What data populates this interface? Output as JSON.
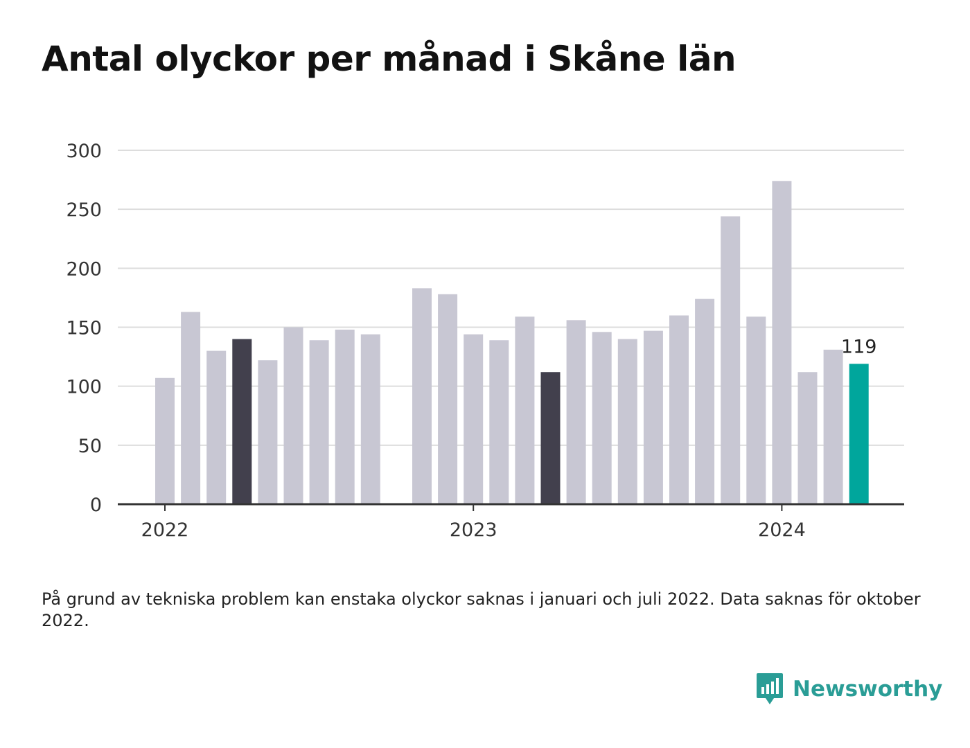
{
  "title": "Antal olyckor per månad i Skåne län",
  "note": "På grund av tekniska problem kan enstaka olyckor saknas i januari och juli 2022. Data saknas för oktober 2022.",
  "brand": {
    "name": "Newsworthy",
    "color": "#2a9d96"
  },
  "colors": {
    "default_bar": "#c8c7d3",
    "highlight_bar": "#42404d",
    "current_bar": "#00a69c",
    "grid": "#dddddd",
    "axis": "#333333"
  },
  "chart_data": {
    "type": "bar",
    "ylim": [
      0,
      300
    ],
    "yticks": [
      0,
      50,
      100,
      150,
      200,
      250,
      300
    ],
    "xtick_labels": [
      {
        "label": "2022",
        "month": "2022-01"
      },
      {
        "label": "2023",
        "month": "2023-01"
      },
      {
        "label": "2024",
        "month": "2024-01"
      }
    ],
    "grid": true,
    "data_labels": [
      {
        "month": "2024-04",
        "text": "119"
      }
    ],
    "categories": [
      "2022-01",
      "2022-02",
      "2022-03",
      "2022-04",
      "2022-05",
      "2022-06",
      "2022-07",
      "2022-08",
      "2022-09",
      "2022-10",
      "2022-11",
      "2022-12",
      "2023-01",
      "2023-02",
      "2023-03",
      "2023-04",
      "2023-05",
      "2023-06",
      "2023-07",
      "2023-08",
      "2023-09",
      "2023-10",
      "2023-11",
      "2023-12",
      "2024-01",
      "2024-02",
      "2024-03",
      "2024-04"
    ],
    "values": [
      107,
      163,
      130,
      140,
      122,
      150,
      139,
      148,
      144,
      null,
      183,
      178,
      144,
      139,
      159,
      112,
      156,
      146,
      140,
      147,
      160,
      174,
      244,
      159,
      274,
      112,
      131,
      119
    ],
    "highlight": {
      "2022-04": "highlight_bar",
      "2023-04": "highlight_bar",
      "2024-04": "current_bar"
    }
  }
}
